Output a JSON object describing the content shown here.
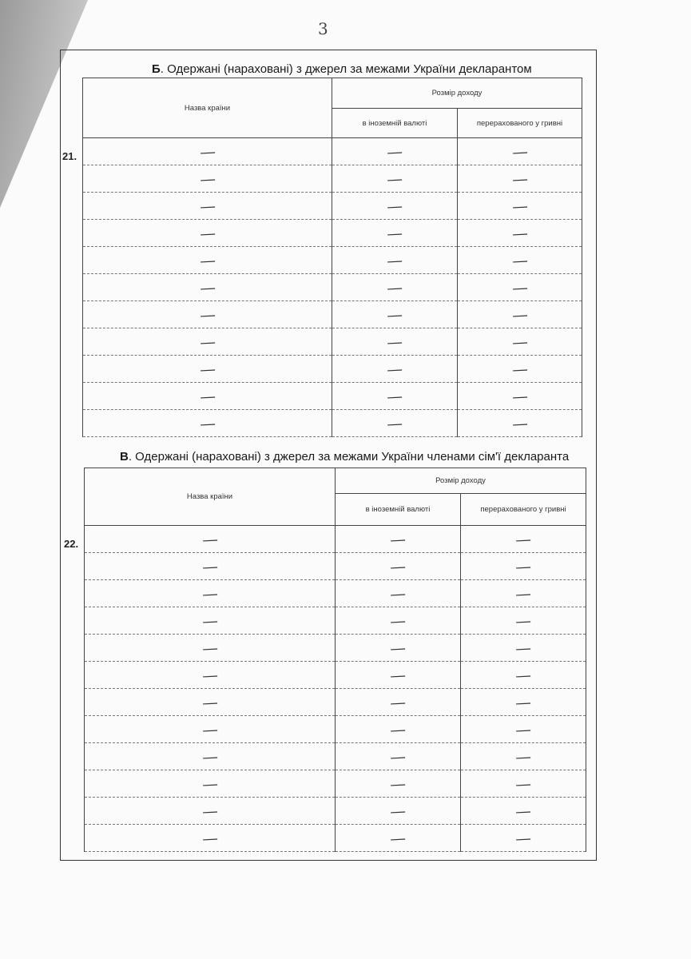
{
  "page_number": "3",
  "section_b": {
    "letter": "Б",
    "title": ". Одержані (нараховані) з джерел за межами України декларантом",
    "row_number": "21.",
    "headers": {
      "country": "Назва країни",
      "income": "Розмір доходу",
      "foreign_currency": "в іноземній валюті",
      "uah": "перерахованого у гривні"
    },
    "rows": [
      [
        "—",
        "—",
        "—"
      ],
      [
        "—",
        "—",
        "—"
      ],
      [
        "—",
        "—",
        "—"
      ],
      [
        "—",
        "—",
        "—"
      ],
      [
        "—",
        "—",
        "—"
      ],
      [
        "—",
        "—",
        "—"
      ],
      [
        "—",
        "—",
        "—"
      ],
      [
        "—",
        "—",
        "—"
      ],
      [
        "—",
        "—",
        "—"
      ],
      [
        "—",
        "—",
        "—"
      ],
      [
        "—",
        "—",
        "—"
      ]
    ]
  },
  "section_v": {
    "letter": "В",
    "title": ". Одержані (нараховані) з джерел за межами України членами сім'ї декларанта",
    "row_number": "22.",
    "headers": {
      "country": "Назва країни",
      "income": "Розмір доходу",
      "foreign_currency": "в іноземній валюті",
      "uah": "перерахованого у гривні"
    },
    "rows": [
      [
        "—",
        "—",
        "—"
      ],
      [
        "—",
        "—",
        "—"
      ],
      [
        "—",
        "—",
        "—"
      ],
      [
        "—",
        "—",
        "—"
      ],
      [
        "—",
        "—",
        "—"
      ],
      [
        "—",
        "—",
        "—"
      ],
      [
        "—",
        "—",
        "—"
      ],
      [
        "—",
        "—",
        "—"
      ],
      [
        "—",
        "—",
        "—"
      ],
      [
        "—",
        "—",
        "—"
      ],
      [
        "—",
        "—",
        "—"
      ],
      [
        "—",
        "—",
        "—"
      ]
    ]
  }
}
